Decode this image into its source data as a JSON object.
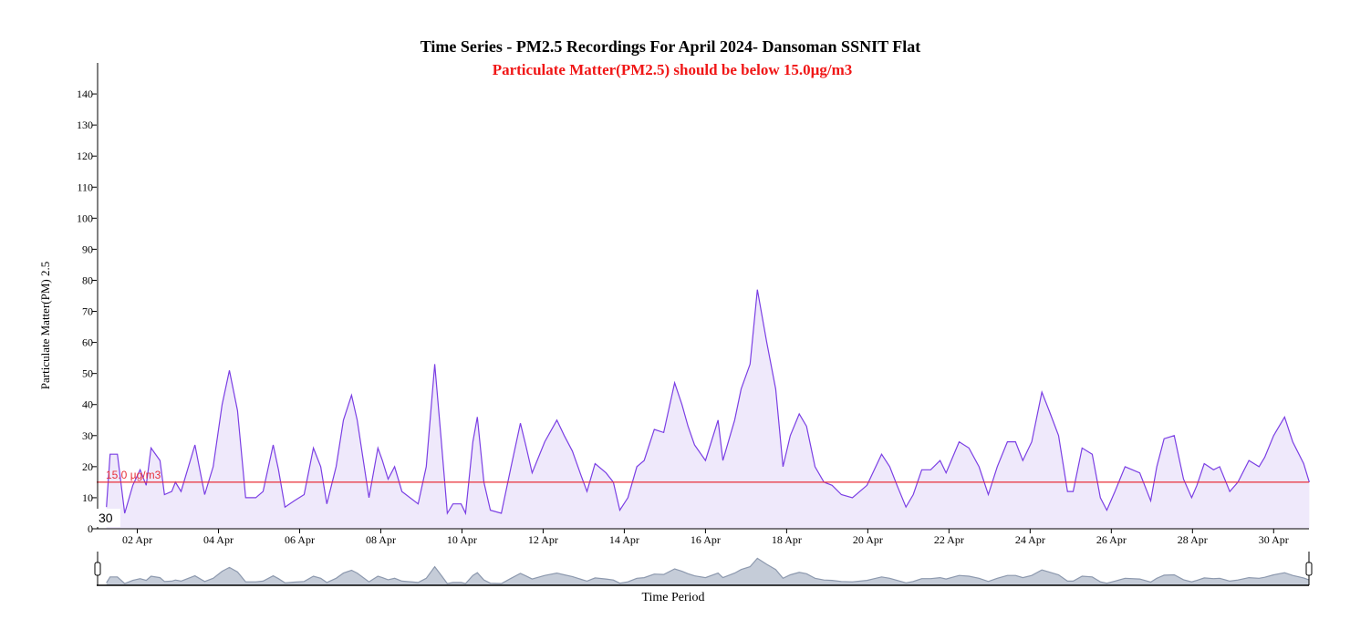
{
  "chart_data": {
    "type": "area",
    "title": "Time Series - PM2.5 Recordings For April 2024- Dansoman SSNIT Flat",
    "subtitle": "Particulate Matter(PM2.5) should be below 15.0µg/m3",
    "x_label": "Time Period",
    "y_label": "Particulate Matter(PM) 2.5",
    "annotation": "30",
    "threshold": {
      "value": 15,
      "label": "15.0 µg/m3",
      "color": "#e8303a"
    },
    "xlim": [
      1,
      30.87
    ],
    "xticks": [
      {
        "value": 2,
        "label": "02 Apr"
      },
      {
        "value": 4,
        "label": "04 Apr"
      },
      {
        "value": 6,
        "label": "06 Apr"
      },
      {
        "value": 8,
        "label": "08 Apr"
      },
      {
        "value": 10,
        "label": "10 Apr"
      },
      {
        "value": 12,
        "label": "12 Apr"
      },
      {
        "value": 14,
        "label": "14 Apr"
      },
      {
        "value": 16,
        "label": "16 Apr"
      },
      {
        "value": 18,
        "label": "18 Apr"
      },
      {
        "value": 20,
        "label": "20 Apr"
      },
      {
        "value": 22,
        "label": "22 Apr"
      },
      {
        "value": 24,
        "label": "24 Apr"
      },
      {
        "value": 26,
        "label": "26 Apr"
      },
      {
        "value": 28,
        "label": "28 Apr"
      },
      {
        "value": 30,
        "label": "30 Apr"
      }
    ],
    "ylim": [
      0,
      150
    ],
    "yticks": [
      0,
      10,
      20,
      30,
      40,
      50,
      60,
      70,
      80,
      90,
      100,
      110,
      120,
      130,
      140
    ],
    "navigator": true,
    "series": [
      {
        "name": "PM2.5",
        "color": "#7b3fe4",
        "fill": "#efe9fb",
        "x": [
          1.24,
          1.33,
          1.51,
          1.69,
          1.89,
          2.07,
          2.22,
          2.34,
          2.56,
          2.67,
          2.85,
          2.94,
          3.08,
          3.42,
          3.66,
          3.87,
          4.09,
          4.27,
          4.47,
          4.67,
          4.92,
          5.1,
          5.35,
          5.48,
          5.64,
          5.87,
          6.11,
          6.34,
          6.52,
          6.67,
          6.9,
          7.08,
          7.28,
          7.42,
          7.71,
          7.93,
          8.04,
          8.18,
          8.34,
          8.52,
          8.92,
          9.12,
          9.33,
          9.48,
          9.64,
          9.78,
          9.98,
          10.09,
          10.27,
          10.38,
          10.54,
          10.7,
          10.97,
          11.21,
          11.44,
          11.57,
          11.73,
          12.04,
          12.34,
          12.52,
          12.72,
          12.94,
          13.08,
          13.28,
          13.55,
          13.73,
          13.89,
          14.09,
          14.31,
          14.49,
          14.74,
          14.97,
          15.24,
          15.42,
          15.57,
          15.73,
          16.0,
          16.31,
          16.43,
          16.72,
          16.88,
          17.1,
          17.28,
          17.51,
          17.73,
          17.91,
          18.09,
          18.31,
          18.49,
          18.7,
          18.92,
          19.12,
          19.35,
          19.62,
          19.98,
          20.34,
          20.54,
          20.72,
          20.94,
          21.12,
          21.33,
          21.55,
          21.78,
          21.93,
          22.25,
          22.49,
          22.74,
          22.97,
          23.19,
          23.44,
          23.64,
          23.82,
          24.04,
          24.29,
          24.47,
          24.7,
          24.92,
          25.06,
          25.28,
          25.53,
          25.73,
          25.89,
          26.09,
          26.34,
          26.7,
          26.97,
          27.12,
          27.3,
          27.55,
          27.78,
          27.98,
          28.11,
          28.29,
          28.52,
          28.67,
          28.92,
          29.12,
          29.39,
          29.64,
          29.78,
          30.0,
          30.27,
          30.47,
          30.74,
          30.88
        ],
        "values": [
          7,
          24,
          24,
          5,
          14,
          19,
          14,
          26,
          22,
          11,
          12,
          15,
          12,
          27,
          11,
          20,
          40,
          51,
          38,
          10,
          10,
          12,
          27,
          19,
          7,
          9,
          11,
          26,
          20,
          8,
          20,
          35,
          43,
          35,
          10,
          26,
          22,
          16,
          20,
          12,
          8,
          20,
          53,
          30,
          5,
          8,
          8,
          5,
          28,
          36,
          15,
          6,
          5,
          20,
          34,
          27,
          18,
          28,
          35,
          30,
          25,
          17,
          12,
          21,
          18,
          15,
          6,
          10,
          20,
          22,
          32,
          31,
          47,
          40,
          33,
          27,
          22,
          35,
          22,
          35,
          45,
          53,
          77,
          60,
          45,
          20,
          30,
          37,
          33,
          20,
          15,
          14,
          11,
          10,
          14,
          24,
          20,
          14,
          7,
          11,
          19,
          19,
          22,
          18,
          28,
          26,
          20,
          11,
          20,
          28,
          28,
          22,
          28,
          44,
          38,
          30,
          12,
          12,
          26,
          24,
          10,
          6,
          12,
          20,
          18,
          9,
          20,
          29,
          30,
          16,
          10,
          14,
          21,
          19,
          20,
          12,
          15,
          22,
          20,
          23,
          30,
          36,
          28,
          21,
          15
        ]
      }
    ]
  }
}
